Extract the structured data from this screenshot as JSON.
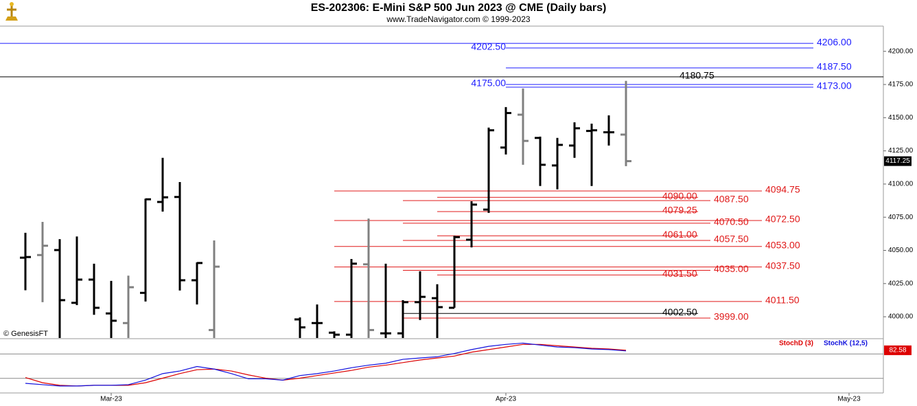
{
  "chart_data": [
    {
      "type": "ohlc",
      "title": "ES-202306:  E-Mini S&P 500 Jun 2023 @ CME  (Daily bars)",
      "subtitle": "www.TradeNavigator.com © 1999-2023",
      "copyright": "© GenesisFT",
      "x": [
        0,
        1,
        2,
        3,
        4,
        5,
        6,
        7,
        8,
        9,
        10,
        11,
        16,
        17,
        18,
        19,
        20,
        21,
        22,
        23,
        24,
        25,
        26,
        27,
        28,
        29,
        30,
        31,
        32,
        33,
        34,
        35
      ],
      "open": [
        4044.5,
        4046.5,
        4050.25,
        4010.5,
        4028,
        4002.5,
        3995.25,
        4018,
        4086.5,
        4090.25,
        4027.5,
        3990,
        3998,
        3995.25,
        3988,
        3986.5,
        4039.5,
        3987.5,
        3987.5,
        4011,
        4014,
        4006.75,
        4058,
        4080.75,
        4127.5,
        4152.25,
        4134.75,
        4114,
        4129,
        4140,
        4139,
        4137.25
      ],
      "high": [
        4063.25,
        4071.5,
        4058.5,
        4060.5,
        4040,
        4027,
        4031,
        4089,
        4119.75,
        4101.5,
        4041,
        4057.5,
        3999.5,
        4009.25,
        3989,
        4043.5,
        4074,
        4040,
        4012.5,
        4034.25,
        4024.5,
        4061,
        4087,
        4142.5,
        4158,
        4172,
        4135.75,
        4134.75,
        4146.5,
        4145.5,
        4151.75,
        4177.75
      ],
      "low": [
        4020,
        4011,
        3978,
        4008.75,
        4001.5,
        3978,
        3980,
        4011.5,
        4079.25,
        4019.75,
        4009.25,
        3980,
        3980,
        3980,
        3980,
        3980,
        3980,
        3980,
        3983,
        3997.5,
        3980,
        4006.75,
        4052.25,
        4078.25,
        4122.25,
        4114.5,
        4098.5,
        4096,
        4119.75,
        4098.5,
        4129,
        4113.5
      ],
      "close": [
        4045,
        4053.5,
        4012.5,
        4028,
        4006.75,
        3997,
        4022.25,
        4088.5,
        4090,
        4027.5,
        4040.5,
        4037.75,
        3992,
        3995.25,
        3986.5,
        4040,
        3990,
        3987.5,
        4011,
        4015,
        4007.25,
        4060,
        4084.5,
        4140.5,
        4153.5,
        4132.5,
        4114.5,
        4129.5,
        4142,
        4140.5,
        4139,
        4117.25
      ],
      "colors": [
        "#000000",
        "#808080",
        "#000000",
        "#000000",
        "#000000",
        "#000000",
        "#808080",
        "#000000",
        "#000000",
        "#000000",
        "#000000",
        "#808080",
        "#000000",
        "#000000",
        "#000000",
        "#000000",
        "#808080",
        "#000000",
        "#000000",
        "#000000",
        "#000000",
        "#000000",
        "#000000",
        "#000000",
        "#000000",
        "#808080",
        "#000000",
        "#000000",
        "#000000",
        "#000000",
        "#000000",
        "#808080"
      ],
      "xlim": [
        -1.48,
        50
      ],
      "ylim": [
        3984,
        4219
      ],
      "yticks": [
        {
          "value": 4000,
          "label": "4000.00"
        },
        {
          "value": 4025,
          "label": "4025.00"
        },
        {
          "value": 4050,
          "label": "4050.00"
        },
        {
          "value": 4075,
          "label": "4075.00"
        },
        {
          "value": 4100,
          "label": "4100.00"
        },
        {
          "value": 4125,
          "label": "4125.00"
        },
        {
          "value": 4150,
          "label": "4150.00"
        },
        {
          "value": 4175,
          "label": "4175.00"
        },
        {
          "value": 4200,
          "label": "4200.00"
        }
      ],
      "levels": [
        {
          "color": "#1c1cff",
          "values": [
            4206
          ],
          "value_labels": [
            "4206.00"
          ]
        },
        {
          "color": "#1c1cff",
          "values": [
            4202.5,
            4175
          ],
          "value_labels": [
            "4202.50",
            "4175.00"
          ]
        },
        {
          "color": "#1c1cff",
          "values": [
            4187.5,
            4173
          ],
          "value_labels": [
            "4187.50",
            "4173.00"
          ]
        },
        {
          "color": "#000000",
          "values": [
            4180.75
          ],
          "value_labels": [
            "4180.75"
          ]
        },
        {
          "color": "#e01818",
          "values": [
            4094.75,
            4072.5,
            4053,
            4037.5,
            4011.5
          ],
          "value_labels": [
            "4094.75",
            "4072.50",
            "4053.00",
            "4037.50",
            "4011.50"
          ]
        },
        {
          "color": "#e01818",
          "values": [
            4087.5,
            4070.5,
            4057.5,
            4035,
            3999
          ],
          "value_labels": [
            "4087.50",
            "4070.50",
            "4057.50",
            "4035.00",
            "3999.00"
          ]
        },
        {
          "color": "#e01818",
          "values": [
            4090,
            4079.25,
            4061,
            4031.5
          ],
          "value_labels": [
            "4090.00",
            "4079.25",
            "4061.00",
            "4031.50"
          ]
        },
        {
          "color": "#000000",
          "values": [
            4002.5
          ],
          "value_labels": [
            "4002.50"
          ]
        }
      ]
    },
    {
      "type": "line",
      "x": [
        0,
        1,
        2,
        3,
        4,
        5,
        6,
        7,
        8,
        9,
        10,
        11,
        12,
        13,
        14,
        15,
        16,
        17,
        18,
        19,
        20,
        21,
        22,
        23,
        24,
        25,
        26,
        27,
        28,
        29,
        30,
        31,
        32,
        33,
        34,
        35
      ],
      "series": [
        {
          "name": "StochD (3)",
          "color": "#dd0000",
          "values": [
            26.7,
            16,
            10.7,
            9.3,
            10.7,
            10.7,
            10.7,
            16,
            25.3,
            34.7,
            42.7,
            44,
            40,
            32,
            25.3,
            21.3,
            25.3,
            30.7,
            36,
            41.3,
            48,
            52,
            57.3,
            62.7,
            66.7,
            70.7,
            78.7,
            84,
            89.3,
            94.7,
            94.7,
            92,
            89.3,
            86.7,
            85.3,
            82.58
          ]
        },
        {
          "name": "StochK (12,5)",
          "color": "#1010dd",
          "values": [
            14.7,
            12,
            9.3,
            9.3,
            10.7,
            10.7,
            12,
            21.3,
            34.7,
            40,
            49.3,
            44,
            34.7,
            24,
            24,
            21.3,
            30.7,
            34.7,
            40,
            46.7,
            52,
            56,
            64,
            66.7,
            69.3,
            76,
            84,
            90.7,
            94.7,
            97.3,
            93.3,
            89.3,
            88,
            85.3,
            84,
            81.3
          ]
        }
      ],
      "xlim": [
        -1.48,
        50
      ],
      "ylim": [
        -5,
        105
      ],
      "grid_levels": [
        25,
        75
      ],
      "xticks": [
        {
          "value": 5,
          "label": "Mar-23"
        },
        {
          "value": 28,
          "label": "Apr-23"
        },
        {
          "value": 48,
          "label": "May-23"
        }
      ]
    }
  ]
}
